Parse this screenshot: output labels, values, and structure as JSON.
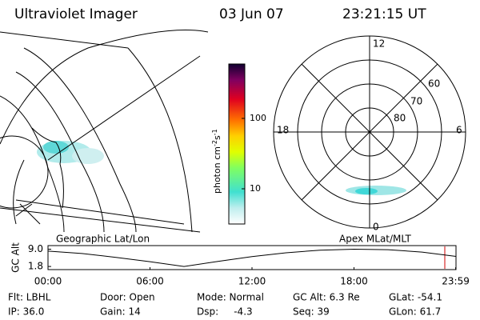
{
  "header": {
    "instrument": "Ultraviolet Imager",
    "date": "03 Jun 07",
    "time": "23:21:15 UT"
  },
  "map": {
    "label": "Geographic Lat/Lon"
  },
  "colorbar": {
    "label": "photon cm",
    "exp1": "-2",
    "unit2": "s",
    "exp2": "-1",
    "tick_high": "100",
    "tick_low": "10"
  },
  "polar": {
    "label": "Apex MLat/MLT",
    "mlt_top": "12",
    "mlt_left": "18",
    "mlt_right": "6",
    "mlt_bottom": "0",
    "lat_outer": "60",
    "lat_mid": "70",
    "lat_inner": "80"
  },
  "altitude": {
    "ylabel": "GC Alt",
    "ylim": [
      0.5,
      10.5
    ],
    "yticks": [
      {
        "value": 9.0,
        "label": "9.0"
      },
      {
        "value": 1.8,
        "label": "1.8"
      }
    ],
    "xlim": [
      0,
      24
    ],
    "xticks": [
      {
        "value": 0,
        "label": "00:00"
      },
      {
        "value": 6,
        "label": "06:00"
      },
      {
        "value": 12,
        "label": "12:00"
      },
      {
        "value": 18,
        "label": "18:00"
      },
      {
        "value": 23.98,
        "label": "23:59"
      }
    ],
    "x": [
      0,
      2,
      4,
      6,
      8,
      10,
      12,
      14,
      16,
      18,
      20,
      22,
      24
    ],
    "values": [
      8.2,
      7.2,
      5.6,
      3.8,
      1.8,
      3.9,
      5.9,
      7.5,
      8.6,
      9.0,
      8.8,
      7.8,
      6.0
    ]
  },
  "info": [
    [
      "Flt: LBHL",
      "IP: 36.0"
    ],
    [
      "Door: Open",
      "Gain: 14"
    ],
    [
      "Mode: Normal",
      "Dsp:     -4.3"
    ],
    [
      "GC Alt: 6.3 Re",
      "Seq: 39"
    ],
    [
      "GLat: -54.1",
      "GLon: 61.7"
    ]
  ]
}
